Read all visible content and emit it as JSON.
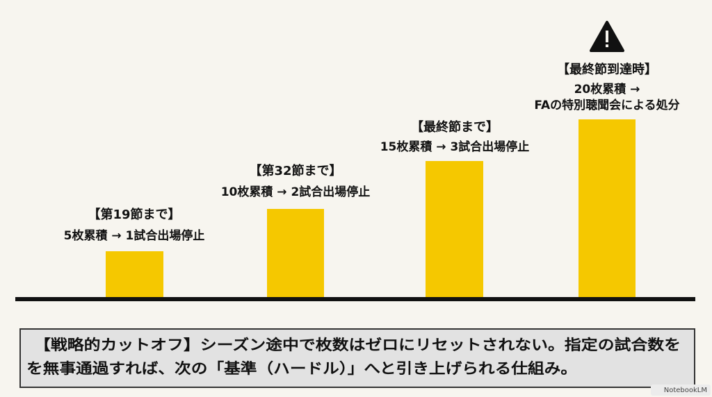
{
  "steps": [
    {
      "title": "【第19節まで】",
      "lines": [
        "5枚累積 → 1試合出場停止"
      ]
    },
    {
      "title": "【第32節まで】",
      "lines": [
        "10枚累積 → 2試合出場停止"
      ]
    },
    {
      "title": "【最終節まで】",
      "lines": [
        "15枚累積 → 3試合出場停止"
      ]
    },
    {
      "title": "【最終節到達時】",
      "lines": [
        "20枚累積 →",
        "FAの特別聴聞会による処分"
      ]
    }
  ],
  "note": {
    "lines": [
      "【戦略的カットオフ】シーズン途中で枚数はゼロにリセットされない。指定の試合数を",
      "を無事通過すれば、次の「基準（ハードル）」へと引き上げられる仕組み。"
    ]
  },
  "watermark": "NotebookLM"
}
